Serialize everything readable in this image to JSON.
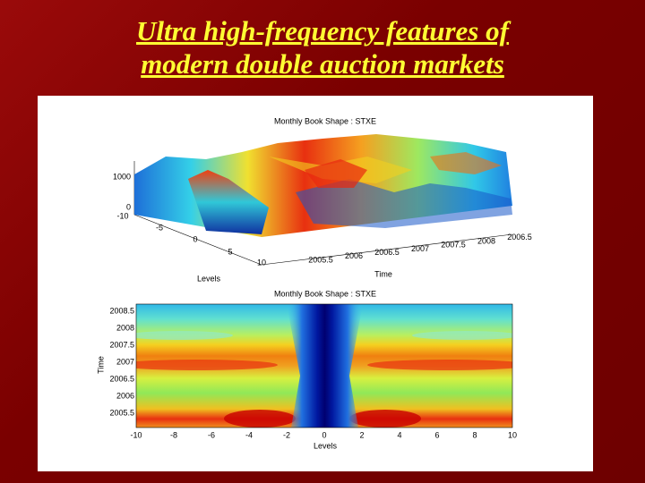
{
  "slide": {
    "title_lines": [
      "Ultra high-frequency features of",
      "modern double auction markets"
    ],
    "top_plot": {
      "title": "Monthly Book Shape  : STXE",
      "z_ticks": [
        "1000",
        "0"
      ],
      "level_ticks": [
        "-10",
        "-5",
        "0",
        "5",
        "10"
      ],
      "time_ticks": [
        "2005.5",
        "2006",
        "2006.5",
        "2007",
        "2007.5",
        "2008",
        "2006.5"
      ],
      "x_label": "Levels",
      "y_label": "Time"
    },
    "bottom_plot": {
      "title": "Monthly Book Shape  : STXE",
      "y_ticks": [
        "2008.5",
        "2008",
        "2007.5",
        "2007",
        "2006.5",
        "2006",
        "2005.5"
      ],
      "x_ticks": [
        "-10",
        "-8",
        "-6",
        "-4",
        "-2",
        "0",
        "2",
        "4",
        "6",
        "8",
        "10"
      ],
      "x_label": "Levels",
      "y_label": "Time"
    }
  }
}
